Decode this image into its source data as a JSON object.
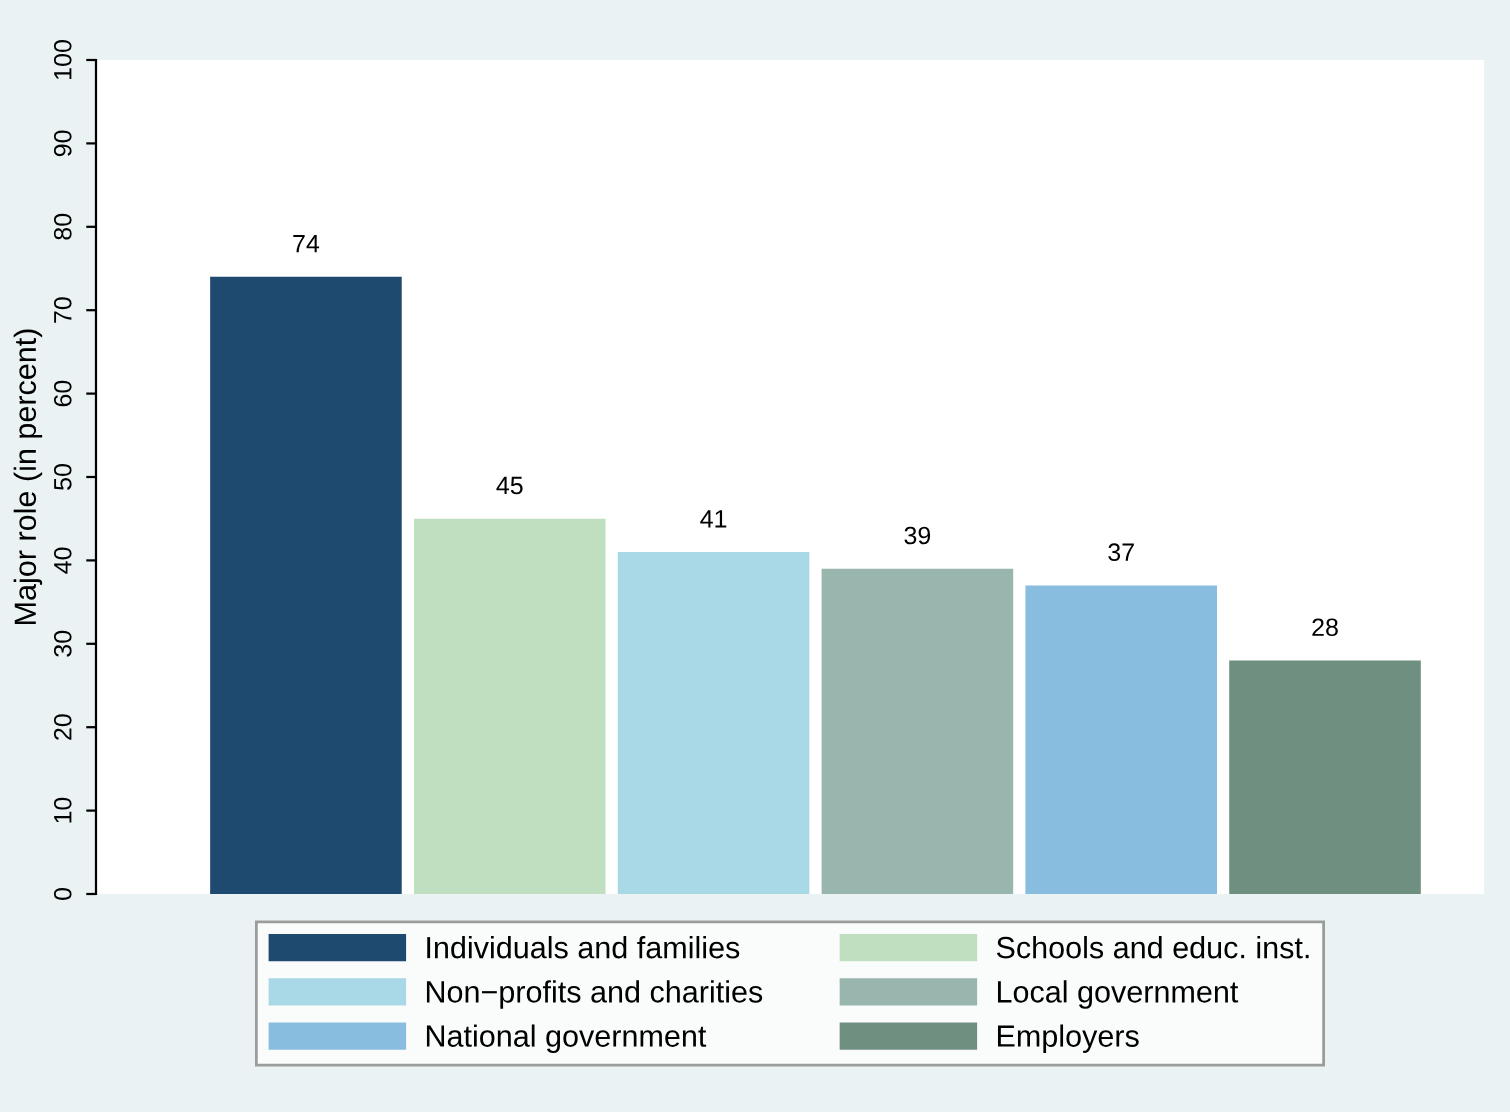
{
  "chart_data": {
    "type": "bar",
    "ylabel": "Major role (in percent)",
    "categories": [
      null
    ],
    "series": [
      {
        "name": "Individuals and families",
        "color": "#1f4a70",
        "values": [
          74
        ]
      },
      {
        "name": "Schools and educ. inst.",
        "color": "#c0dfc1",
        "values": [
          45
        ]
      },
      {
        "name": "Non−profits and charities",
        "color": "#a9d8e6",
        "values": [
          41
        ]
      },
      {
        "name": "Local government",
        "color": "#98b6ad",
        "values": [
          39
        ]
      },
      {
        "name": "National government",
        "color": "#88bde0",
        "values": [
          37
        ]
      },
      {
        "name": "Employers",
        "color": "#6f8f80",
        "values": [
          28
        ]
      }
    ],
    "ylim": [
      0,
      100
    ],
    "yticks": [
      0,
      10,
      20,
      30,
      40,
      50,
      60,
      70,
      80,
      90,
      100
    ],
    "data_labels": true,
    "grid": false,
    "legend": "bottom"
  }
}
